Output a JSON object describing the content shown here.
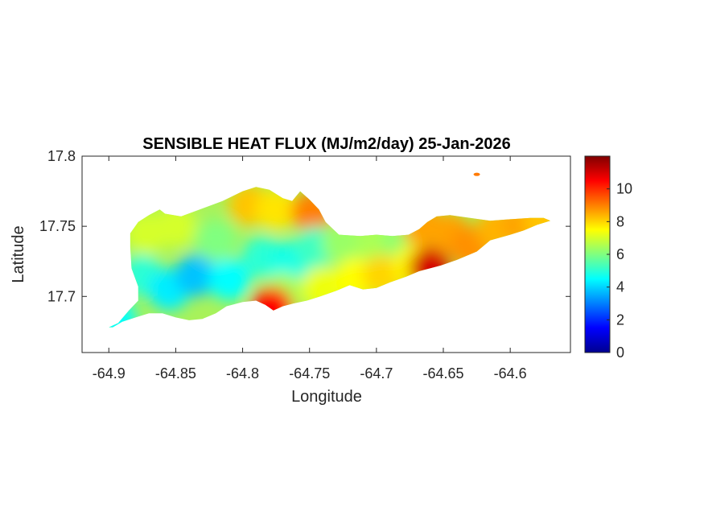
{
  "chart_data": {
    "type": "heatmap",
    "title": "SENSIBLE HEAT FLUX (MJ/m2/day) 25-Jan-2026",
    "xlabel": "Longitude",
    "ylabel": "Latitude",
    "xlim": [
      -64.92,
      -64.555
    ],
    "ylim": [
      17.66,
      17.8
    ],
    "x_ticks": [
      "-64.9",
      "-64.85",
      "-64.8",
      "-64.75",
      "-64.7",
      "-64.65",
      "-64.6"
    ],
    "x_tick_values": [
      -64.9,
      -64.85,
      -64.8,
      -64.75,
      -64.7,
      -64.65,
      -64.6
    ],
    "y_ticks": [
      "17.7",
      "17.75",
      "17.8"
    ],
    "y_tick_values": [
      17.7,
      17.75,
      17.8
    ],
    "colorbar": {
      "colormap": "jet",
      "limits": [
        0,
        12
      ],
      "ticks": [
        "0",
        "2",
        "4",
        "6",
        "8",
        "10"
      ],
      "tick_values": [
        0,
        2,
        4,
        6,
        8,
        10
      ]
    },
    "grid": false,
    "island_outline": [
      [
        -64.9,
        17.678
      ],
      [
        -64.893,
        17.681
      ],
      [
        -64.885,
        17.69
      ],
      [
        -64.878,
        17.697
      ],
      [
        -64.878,
        17.707
      ],
      [
        -64.883,
        17.72
      ],
      [
        -64.884,
        17.735
      ],
      [
        -64.884,
        17.745
      ],
      [
        -64.878,
        17.753
      ],
      [
        -64.87,
        17.758
      ],
      [
        -64.862,
        17.762
      ],
      [
        -64.858,
        17.759
      ],
      [
        -64.846,
        17.757
      ],
      [
        -64.832,
        17.762
      ],
      [
        -64.815,
        17.768
      ],
      [
        -64.8,
        17.775
      ],
      [
        -64.79,
        17.778
      ],
      [
        -64.78,
        17.776
      ],
      [
        -64.77,
        17.77
      ],
      [
        -64.763,
        17.768
      ],
      [
        -64.757,
        17.775
      ],
      [
        -64.75,
        17.769
      ],
      [
        -64.743,
        17.762
      ],
      [
        -64.738,
        17.753
      ],
      [
        -64.728,
        17.744
      ],
      [
        -64.712,
        17.743
      ],
      [
        -64.7,
        17.744
      ],
      [
        -64.688,
        17.743
      ],
      [
        -64.676,
        17.744
      ],
      [
        -64.668,
        17.748
      ],
      [
        -64.662,
        17.753
      ],
      [
        -64.655,
        17.757
      ],
      [
        -64.645,
        17.758
      ],
      [
        -64.63,
        17.756
      ],
      [
        -64.615,
        17.754
      ],
      [
        -64.6,
        17.755
      ],
      [
        -64.585,
        17.756
      ],
      [
        -64.575,
        17.756
      ],
      [
        -64.57,
        17.754
      ],
      [
        -64.58,
        17.751
      ],
      [
        -64.59,
        17.747
      ],
      [
        -64.6,
        17.744
      ],
      [
        -64.615,
        17.74
      ],
      [
        -64.625,
        17.732
      ],
      [
        -64.64,
        17.726
      ],
      [
        -64.652,
        17.722
      ],
      [
        -64.66,
        17.72
      ],
      [
        -64.668,
        17.718
      ],
      [
        -64.678,
        17.714
      ],
      [
        -64.69,
        17.71
      ],
      [
        -64.7,
        17.706
      ],
      [
        -64.71,
        17.705
      ],
      [
        -64.72,
        17.708
      ],
      [
        -64.73,
        17.704
      ],
      [
        -64.742,
        17.7
      ],
      [
        -64.752,
        17.697
      ],
      [
        -64.762,
        17.695
      ],
      [
        -64.77,
        17.693
      ],
      [
        -64.777,
        17.69
      ],
      [
        -64.783,
        17.694
      ],
      [
        -64.79,
        17.697
      ],
      [
        -64.8,
        17.696
      ],
      [
        -64.812,
        17.693
      ],
      [
        -64.82,
        17.688
      ],
      [
        -64.83,
        17.684
      ],
      [
        -64.84,
        17.683
      ],
      [
        -64.85,
        17.685
      ],
      [
        -64.86,
        17.688
      ],
      [
        -64.87,
        17.688
      ],
      [
        -64.88,
        17.685
      ],
      [
        -64.89,
        17.682
      ],
      [
        -64.897,
        17.678
      ]
    ],
    "value_regions": [
      {
        "lon": -64.895,
        "lat": 17.683,
        "value": 4.5
      },
      {
        "lon": -64.875,
        "lat": 17.715,
        "value": 5.0
      },
      {
        "lon": -64.872,
        "lat": 17.745,
        "value": 7.0
      },
      {
        "lon": -64.85,
        "lat": 17.75,
        "value": 7.0
      },
      {
        "lon": -64.855,
        "lat": 17.705,
        "value": 4.3
      },
      {
        "lon": -64.835,
        "lat": 17.715,
        "value": 3.8
      },
      {
        "lon": -64.82,
        "lat": 17.74,
        "value": 6.0
      },
      {
        "lon": -64.81,
        "lat": 17.712,
        "value": 4.5
      },
      {
        "lon": -64.795,
        "lat": 17.765,
        "value": 8.2
      },
      {
        "lon": -64.775,
        "lat": 17.762,
        "value": 7.8
      },
      {
        "lon": -64.785,
        "lat": 17.728,
        "value": 5.0
      },
      {
        "lon": -64.765,
        "lat": 17.725,
        "value": 4.8
      },
      {
        "lon": -64.77,
        "lat": 17.702,
        "value": 6.5
      },
      {
        "lon": -64.778,
        "lat": 17.692,
        "value": 10.5
      },
      {
        "lon": -64.748,
        "lat": 17.76,
        "value": 9.0
      },
      {
        "lon": -64.745,
        "lat": 17.735,
        "value": 5.2
      },
      {
        "lon": -64.74,
        "lat": 17.706,
        "value": 7.3
      },
      {
        "lon": -64.725,
        "lat": 17.738,
        "value": 6.3
      },
      {
        "lon": -64.715,
        "lat": 17.713,
        "value": 7.5
      },
      {
        "lon": -64.7,
        "lat": 17.738,
        "value": 6.5
      },
      {
        "lon": -64.695,
        "lat": 17.715,
        "value": 8.0
      },
      {
        "lon": -64.68,
        "lat": 17.74,
        "value": 6.2
      },
      {
        "lon": -64.672,
        "lat": 17.722,
        "value": 7.6
      },
      {
        "lon": -64.665,
        "lat": 17.75,
        "value": 8.6
      },
      {
        "lon": -64.66,
        "lat": 17.72,
        "value": 11.0
      },
      {
        "lon": -64.645,
        "lat": 17.745,
        "value": 8.6
      },
      {
        "lon": -64.63,
        "lat": 17.735,
        "value": 8.8
      },
      {
        "lon": -64.61,
        "lat": 17.748,
        "value": 8.4
      },
      {
        "lon": -64.59,
        "lat": 17.752,
        "value": 8.6
      },
      {
        "lon": -64.575,
        "lat": 17.754,
        "value": 8.2
      },
      {
        "lon": -64.625,
        "lat": 17.787,
        "value": 9.0
      }
    ]
  }
}
